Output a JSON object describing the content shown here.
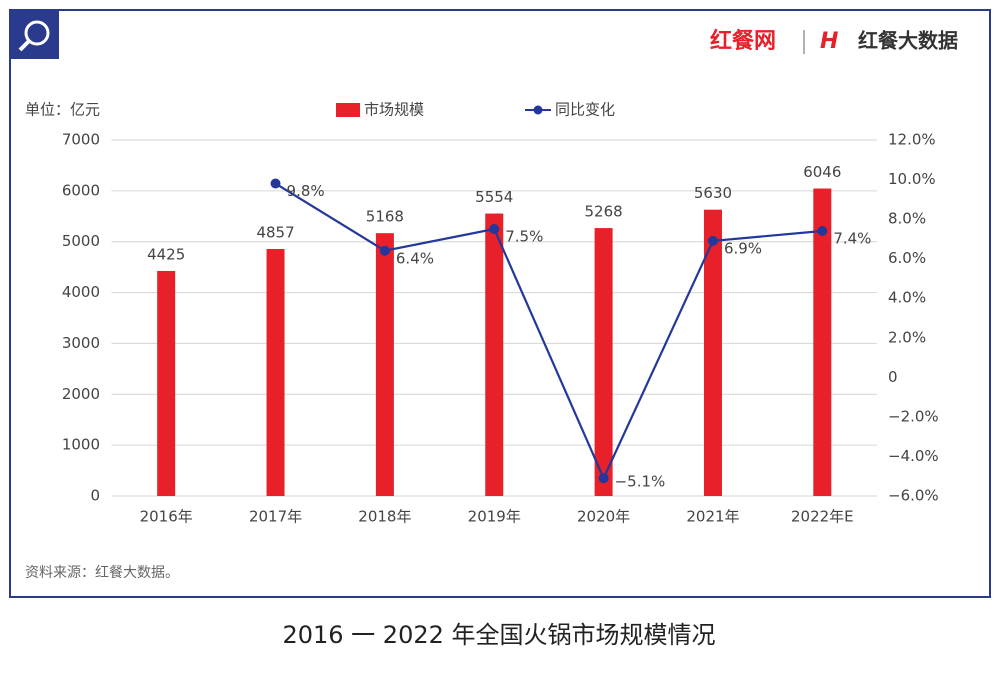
{
  "brand": [
    "红餐网",
    "红餐大数据"
  ],
  "chart_data": {
    "type": "combo",
    "title": "2016 一 2022 年全国火锅市场规模情况",
    "y_label": "单位：亿元",
    "source": "资料来源：红餐大数据。",
    "categories": [
      "2016年",
      "2017年",
      "2018年",
      "2019年",
      "2020年",
      "2021年",
      "2022年E"
    ],
    "series": [
      {
        "name": "市场规模",
        "type": "bar",
        "color": "#e8202a",
        "values": [
          4425,
          4857,
          5168,
          5554,
          5268,
          5630,
          6046
        ]
      },
      {
        "name": "同比变化",
        "type": "line",
        "axis": "y2",
        "color": "#23389a",
        "values": [
          null,
          9.8,
          6.4,
          7.5,
          -5.1,
          6.9,
          7.4
        ],
        "value_labels": [
          null,
          "9.8%",
          "6.4%",
          "7.5%",
          "−5.1%",
          "6.9%",
          "7.4%"
        ]
      }
    ],
    "ylim": [
      0,
      7000
    ],
    "yticks": [
      0,
      1000,
      2000,
      3000,
      4000,
      5000,
      6000,
      7000
    ],
    "y2lim": [
      -6,
      12
    ],
    "y2ticks": [
      {
        "value": -6,
        "label": "−6.0%"
      },
      {
        "value": -4,
        "label": "−4.0%"
      },
      {
        "value": -2,
        "label": "−2.0%"
      },
      0,
      {
        "value": 2,
        "label": "2.0%"
      },
      {
        "value": 4,
        "label": "4.0%"
      },
      {
        "value": 6,
        "label": "6.0%"
      },
      {
        "value": 8,
        "label": "8.0%"
      },
      {
        "value": 10,
        "label": "10.0%"
      },
      {
        "value": 12,
        "label": "12.0%"
      }
    ],
    "grid": true,
    "legend": "top"
  }
}
